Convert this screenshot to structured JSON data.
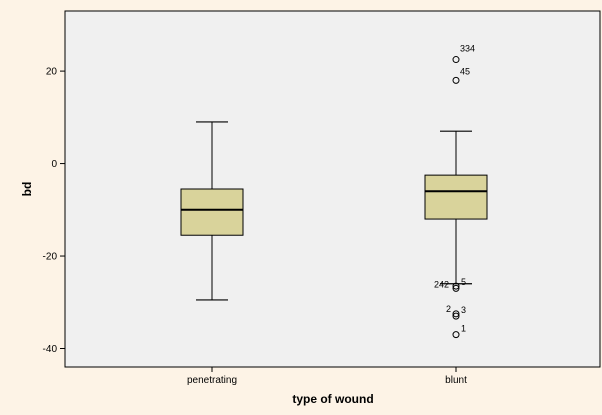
{
  "colors": {
    "page_background": "#fdf3e6",
    "plot_background": "#f0f0f0",
    "box_fill": "#d9d39b",
    "line": "#000000"
  },
  "chart_data": {
    "type": "boxplot",
    "xlabel": "type of wound",
    "ylabel": "bd",
    "ylim": [
      -44,
      33
    ],
    "yticks": [
      {
        "value": 20,
        "label": "20"
      },
      {
        "value": 0,
        "label": "0"
      },
      {
        "value": -20,
        "label": "-20"
      },
      {
        "value": -40,
        "label": "-40"
      }
    ],
    "grid": false,
    "categories": [
      "penetrating",
      "blunt"
    ],
    "boxes": [
      {
        "category": "penetrating",
        "whisker_low": -29.5,
        "q1": -15.5,
        "median": -10,
        "q3": -5.5,
        "whisker_high": 9,
        "outliers": []
      },
      {
        "category": "blunt",
        "whisker_low": -26,
        "q1": -12,
        "median": -6,
        "q3": -2.5,
        "whisker_high": 7,
        "outliers": [
          {
            "value": 22.5,
            "label": "334"
          },
          {
            "value": 18,
            "label": "45"
          },
          {
            "value": -27,
            "label": "242"
          },
          {
            "value": -26.5,
            "label": "5"
          },
          {
            "value": -32.5,
            "label": "2"
          },
          {
            "value": -33,
            "label": "3"
          },
          {
            "value": -37,
            "label": "1"
          }
        ]
      }
    ]
  }
}
